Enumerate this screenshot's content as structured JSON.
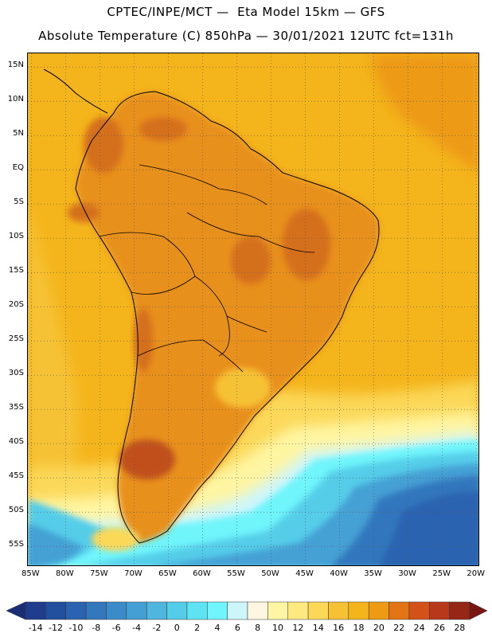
{
  "header": {
    "line1": "CPTEC/INPE/MCT —  Eta Model 15km — GFS",
    "line2": "Absolute Temperature (C) 850hPa — 30/01/2021 12UTC fct=131h"
  },
  "map": {
    "lat_labels": [
      "15N",
      "10N",
      "5N",
      "EQ",
      "5S",
      "10S",
      "15S",
      "20S",
      "25S",
      "30S",
      "35S",
      "40S",
      "45S",
      "50S",
      "55S"
    ],
    "lat_values": [
      15,
      10,
      5,
      0,
      -5,
      -10,
      -15,
      -20,
      -25,
      -30,
      -35,
      -40,
      -45,
      -50,
      -55
    ],
    "lon_labels": [
      "85W",
      "80W",
      "75W",
      "70W",
      "65W",
      "60W",
      "55W",
      "50W",
      "45W",
      "40W",
      "35W",
      "30W",
      "25W",
      "20W"
    ],
    "lon_values": [
      -85,
      -80,
      -75,
      -70,
      -65,
      -60,
      -55,
      -50,
      -45,
      -40,
      -35,
      -30,
      -25,
      -20
    ],
    "lon_range": [
      -85.5,
      -19.5
    ],
    "lat_range": [
      -58,
      17
    ],
    "grid": "dotted",
    "ocean_north_color": "#f4b41b",
    "land_color": "#e8901c",
    "land_hot_color": "#d46f1d",
    "south_cold_color": "#2a64b0"
  },
  "colorbar": {
    "labels": [
      "-14",
      "-12",
      "-10",
      "-8",
      "-6",
      "-4",
      "-2",
      "0",
      "2",
      "4",
      "6",
      "8",
      "10",
      "12",
      "14",
      "16",
      "18",
      "20",
      "22",
      "24",
      "26",
      "28"
    ],
    "colors": [
      "#1f3d8c",
      "#23509e",
      "#2a64b0",
      "#3377bd",
      "#3a8bc8",
      "#44a0d4",
      "#4fb7df",
      "#55cde9",
      "#5fe2f2",
      "#6ff5fb",
      "#cdf6fb",
      "#fff6e2",
      "#fff5a2",
      "#fde97f",
      "#fbd858",
      "#f6c234",
      "#f4b41b",
      "#ed9a14",
      "#e27415",
      "#d2521a",
      "#b8381b",
      "#962717"
    ],
    "low_cap_color": "#1b2e74",
    "high_cap_color": "#7a1612"
  }
}
